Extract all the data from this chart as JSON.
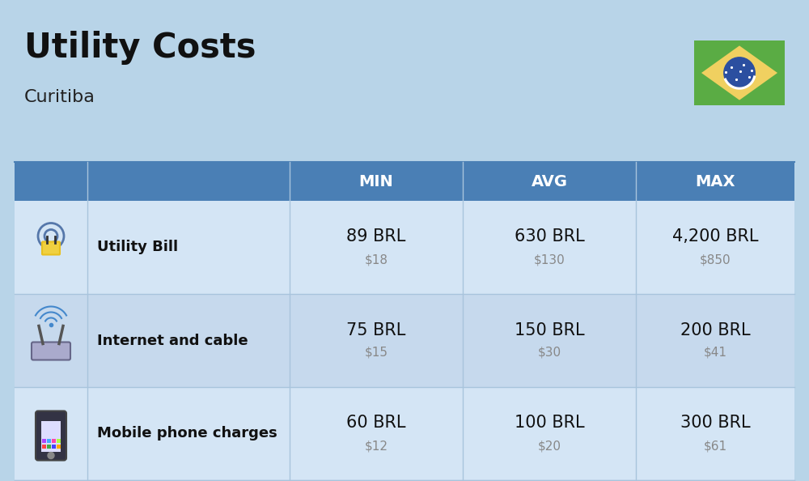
{
  "title": "Utility Costs",
  "subtitle": "Curitiba",
  "background_color": "#b8d4e8",
  "header_color": "#4a7fb5",
  "header_text_color": "#ffffff",
  "columns": [
    "MIN",
    "AVG",
    "MAX"
  ],
  "rows": [
    {
      "name": "Utility Bill",
      "min_brl": "89 BRL",
      "min_usd": "$18",
      "avg_brl": "630 BRL",
      "avg_usd": "$130",
      "max_brl": "4,200 BRL",
      "max_usd": "$850",
      "icon": "utility"
    },
    {
      "name": "Internet and cable",
      "min_brl": "75 BRL",
      "min_usd": "$15",
      "avg_brl": "150 BRL",
      "avg_usd": "$30",
      "max_brl": "200 BRL",
      "max_usd": "$41",
      "icon": "internet"
    },
    {
      "name": "Mobile phone charges",
      "min_brl": "60 BRL",
      "min_usd": "$12",
      "avg_brl": "100 BRL",
      "avg_usd": "$20",
      "max_brl": "300 BRL",
      "max_usd": "$61",
      "icon": "mobile"
    }
  ],
  "title_fontsize": 30,
  "subtitle_fontsize": 16,
  "header_fontsize": 14,
  "row_name_fontsize": 13,
  "row_data_fontsize": 15,
  "row_usd_fontsize": 11,
  "row_colors": [
    "#d4e5f5",
    "#c6d9ed"
  ],
  "flag_green": "#5aac44",
  "flag_yellow": "#f0d060",
  "flag_blue": "#2b4fa0",
  "divider_color": "#a8c4dc"
}
